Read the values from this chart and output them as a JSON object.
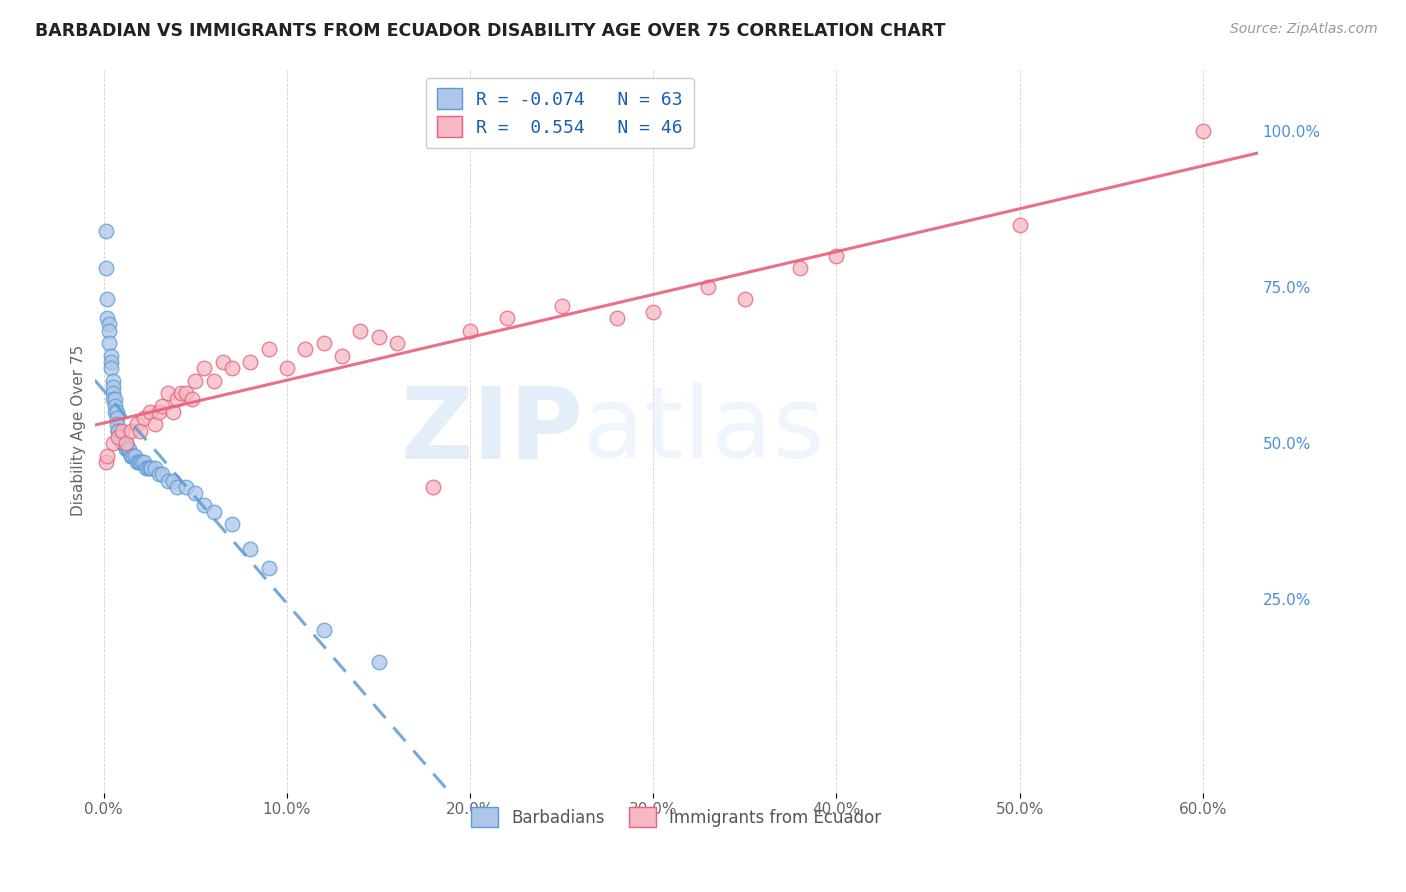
{
  "title": "BARBADIAN VS IMMIGRANTS FROM ECUADOR DISABILITY AGE OVER 75 CORRELATION CHART",
  "source": "Source: ZipAtlas.com",
  "ylabel": "Disability Age Over 75",
  "xlabel_ticks": [
    "0.0%",
    "10.0%",
    "20.0%",
    "30.0%",
    "40.0%",
    "50.0%",
    "60.0%"
  ],
  "xlabel_vals": [
    0.0,
    0.1,
    0.2,
    0.3,
    0.4,
    0.5,
    0.6
  ],
  "ylabel_ticks_right": [
    "100.0%",
    "75.0%",
    "50.0%",
    "25.0%"
  ],
  "ylabel_vals_right": [
    1.0,
    0.75,
    0.5,
    0.25
  ],
  "xlim": [
    -0.005,
    0.63
  ],
  "ylim": [
    -0.06,
    1.1
  ],
  "legend1_label": "R = -0.074   N = 63",
  "legend2_label": "R =  0.554   N = 46",
  "legend_label_barbadians": "Barbadians",
  "legend_label_ecuador": "Immigrants from Ecuador",
  "barbadian_color": "#aec6e8",
  "ecuador_color": "#f5b8c4",
  "line_barbadian_color": "#5b9bd5",
  "line_ecuador_color": "#e8607a",
  "watermark_zip": "ZIP",
  "watermark_atlas": "atlas",
  "R_barbadian": -0.074,
  "N_barbadian": 63,
  "R_ecuador": 0.554,
  "N_ecuador": 46,
  "barbadian_x": [
    0.001,
    0.001,
    0.002,
    0.002,
    0.003,
    0.003,
    0.003,
    0.004,
    0.004,
    0.004,
    0.005,
    0.005,
    0.005,
    0.005,
    0.006,
    0.006,
    0.006,
    0.007,
    0.007,
    0.007,
    0.008,
    0.008,
    0.008,
    0.009,
    0.009,
    0.01,
    0.01,
    0.01,
    0.011,
    0.011,
    0.012,
    0.012,
    0.013,
    0.013,
    0.014,
    0.015,
    0.015,
    0.016,
    0.017,
    0.018,
    0.019,
    0.02,
    0.021,
    0.022,
    0.023,
    0.024,
    0.025,
    0.026,
    0.028,
    0.03,
    0.032,
    0.035,
    0.038,
    0.04,
    0.045,
    0.05,
    0.055,
    0.06,
    0.07,
    0.08,
    0.09,
    0.12,
    0.15
  ],
  "barbadian_y": [
    0.84,
    0.78,
    0.73,
    0.7,
    0.69,
    0.68,
    0.66,
    0.64,
    0.63,
    0.62,
    0.6,
    0.59,
    0.58,
    0.57,
    0.57,
    0.56,
    0.55,
    0.55,
    0.54,
    0.53,
    0.52,
    0.52,
    0.52,
    0.51,
    0.51,
    0.51,
    0.5,
    0.5,
    0.5,
    0.5,
    0.5,
    0.49,
    0.49,
    0.49,
    0.49,
    0.48,
    0.48,
    0.48,
    0.48,
    0.47,
    0.47,
    0.47,
    0.47,
    0.47,
    0.46,
    0.46,
    0.46,
    0.46,
    0.46,
    0.45,
    0.45,
    0.44,
    0.44,
    0.43,
    0.43,
    0.42,
    0.4,
    0.39,
    0.37,
    0.33,
    0.3,
    0.2,
    0.15
  ],
  "ecuador_x": [
    0.001,
    0.002,
    0.005,
    0.008,
    0.01,
    0.012,
    0.015,
    0.018,
    0.02,
    0.022,
    0.025,
    0.028,
    0.03,
    0.032,
    0.035,
    0.038,
    0.04,
    0.042,
    0.045,
    0.048,
    0.05,
    0.055,
    0.06,
    0.065,
    0.07,
    0.08,
    0.09,
    0.1,
    0.11,
    0.12,
    0.13,
    0.14,
    0.15,
    0.16,
    0.18,
    0.2,
    0.22,
    0.25,
    0.28,
    0.3,
    0.33,
    0.35,
    0.38,
    0.4,
    0.5,
    0.6
  ],
  "ecuador_y": [
    0.47,
    0.48,
    0.5,
    0.51,
    0.52,
    0.5,
    0.52,
    0.53,
    0.52,
    0.54,
    0.55,
    0.53,
    0.55,
    0.56,
    0.58,
    0.55,
    0.57,
    0.58,
    0.58,
    0.57,
    0.6,
    0.62,
    0.6,
    0.63,
    0.62,
    0.63,
    0.65,
    0.62,
    0.65,
    0.66,
    0.64,
    0.68,
    0.67,
    0.66,
    0.43,
    0.68,
    0.7,
    0.72,
    0.7,
    0.71,
    0.75,
    0.73,
    0.78,
    0.8,
    0.85,
    1.0
  ]
}
